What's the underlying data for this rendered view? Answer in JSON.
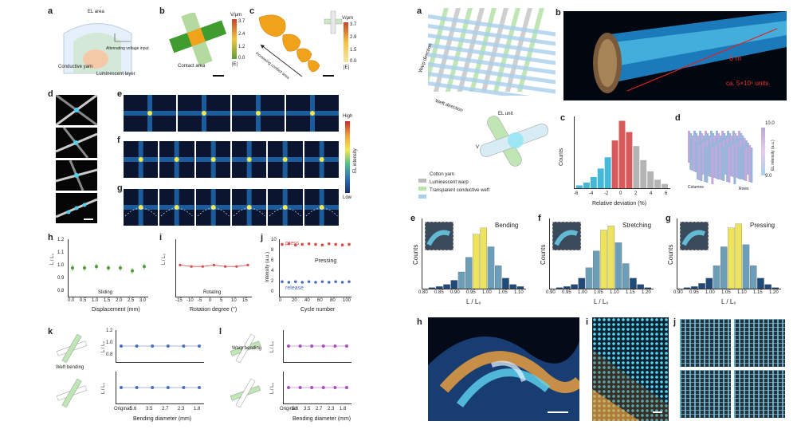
{
  "colors": {
    "accent_yellow": "#f2e64b",
    "accent_blue": "#4a8fc0",
    "accent_cyan": "#39c6e6",
    "accent_red": "#d94b4b",
    "green": "#4e9c3c",
    "orange": "#f0a31a"
  },
  "left": {
    "panel_labels": [
      "a",
      "b",
      "c",
      "d",
      "e",
      "f",
      "g",
      "h",
      "i",
      "j",
      "k",
      "l"
    ],
    "a": {
      "el_area": "EL area",
      "alternating": "Alternating voltage input",
      "conductive": "Conductive yarn",
      "luminescent": "Luminescent layer"
    },
    "b": {
      "contact": "Contact area",
      "cbar_title": "V/μm",
      "cbar_ticks": [
        "3.7",
        "2.4",
        "1.2",
        "0.0"
      ],
      "cbar_label": "|E|"
    },
    "c": {
      "arrow": "Increasing contact area",
      "cbar_title": "V/μm",
      "cbar_ticks": [
        "3.7",
        "2.9",
        "1.5",
        "0.0"
      ],
      "cbar_label": "|E|"
    },
    "legend_el": {
      "high": "High",
      "low": "Low",
      "title": "EL intensity"
    },
    "h": {
      "ylabel": "L / L₀",
      "xlabel": "Displacement (mm)",
      "xticks": [
        "0.0",
        "0.5",
        "1.0",
        "1.5",
        "2.0",
        "2.5",
        "3.0"
      ],
      "yticks": [
        "1.2",
        "1.1",
        "1.0",
        "0.9",
        "0.8"
      ],
      "inset": "Sliding"
    },
    "i": {
      "ylabel": "L / L₀",
      "xlabel": "Rotation degree (°)",
      "xticks": [
        "-15",
        "-10",
        "-5",
        "0",
        "5",
        "10",
        "15"
      ],
      "inset": "Rotating"
    },
    "j": {
      "ylabel": "Intensity (a.u.)",
      "xlabel": "Cycle number",
      "xticks": [
        "0",
        "20",
        "40",
        "60",
        "80",
        "100"
      ],
      "yticks": [
        "10",
        "8",
        "6",
        "4",
        "2",
        "0"
      ],
      "press": "press",
      "release": "release",
      "inset": "Pressing"
    },
    "k": {
      "weft": "Weft bending",
      "ylabel": "L / L₀",
      "xlabel": "Bending diameter (mm)",
      "xticks": [
        "Original",
        "5.6",
        "3.5",
        "2.7",
        "2.3",
        "1.8"
      ],
      "yticks": [
        "1.2",
        "1.0",
        "0.8"
      ]
    },
    "l": {
      "warp": "Warp bending",
      "ylabel": "L / L₀",
      "xlabel": "Bending diameter (mm)",
      "xticks": [
        "Original",
        "5.6",
        "3.5",
        "2.7",
        "2.3",
        "1.8"
      ]
    }
  },
  "right": {
    "a": {
      "warp_dir": "Warp direction",
      "weft_dir": "Weft direction",
      "el_unit": "EL unit",
      "vac": "V",
      "legend": [
        "Cotton yarn",
        "Luminescent warp",
        "Transparent conductive weft"
      ]
    },
    "b": {
      "length": "6 m",
      "units": "ca. 5×10⁵ units"
    },
    "c": {
      "ylabel": "Counts",
      "xlabel": "Relative deviation (%)",
      "xticks": [
        "-6",
        "-4",
        "-2",
        "0",
        "2",
        "4",
        "6"
      ]
    },
    "d": {
      "cbar": "EL intensity (a.u.)",
      "top": "10.0",
      "bottom": "9.0",
      "ax1": "Columns",
      "ax2": "Rows"
    },
    "e": {
      "title": "Bending",
      "ylabel": "Counts",
      "xlabel": "L / L₀",
      "xticks": [
        "0.80",
        "0.85",
        "0.90",
        "0.95",
        "1.00",
        "1.05",
        "1.10"
      ]
    },
    "f": {
      "title": "Stretching",
      "ylabel": "Counts",
      "xlabel": "L / L₀",
      "xticks": [
        "0.90",
        "0.95",
        "1.00",
        "1.05",
        "1.10",
        "1.15",
        "1.20"
      ]
    },
    "g": {
      "title": "Pressing",
      "ylabel": "Counts",
      "xlabel": "L / L₀",
      "xticks": [
        "0.90",
        "0.95",
        "1.00",
        "1.05",
        "1.10",
        "1.15",
        "1.20"
      ]
    },
    "h_label": "h",
    "i_label": "i",
    "j_label": "j"
  },
  "chart_data": [
    {
      "type": "scatter",
      "title": "h",
      "xlabel": "Displacement (mm)",
      "ylabel": "L / L₀",
      "x": [
        0,
        0.5,
        1.0,
        1.5,
        2.0,
        2.5,
        3.0
      ],
      "values": [
        1.0,
        1.0,
        1.01,
        1.0,
        1.0,
        0.98,
        1.01
      ],
      "ylim": [
        0.8,
        1.2
      ]
    },
    {
      "type": "line",
      "title": "i",
      "xlabel": "Rotation degree (°)",
      "ylabel": "L / L₀",
      "x": [
        -15,
        -10,
        -5,
        0,
        5,
        10,
        15
      ],
      "values": [
        1.02,
        1.01,
        1.01,
        1.02,
        1.01,
        1.01,
        1.02
      ]
    },
    {
      "type": "line",
      "title": "j",
      "xlabel": "Cycle number",
      "ylabel": "Intensity (a.u.)",
      "series": [
        {
          "name": "press",
          "values": [
            9.1,
            9.2,
            9.0,
            9.1,
            9.2,
            9.1,
            9.0,
            9.2,
            9.1,
            9.0,
            9.1
          ]
        },
        {
          "name": "release",
          "values": [
            2.6,
            2.5,
            2.6,
            2.5,
            2.6,
            2.5,
            2.6,
            2.5,
            2.6,
            2.5,
            2.6
          ]
        }
      ],
      "x": [
        0,
        10,
        20,
        30,
        40,
        50,
        60,
        70,
        80,
        90,
        100
      ],
      "ylim": [
        0,
        10
      ]
    },
    {
      "type": "bar",
      "title": "c",
      "xlabel": "Relative deviation (%)",
      "ylabel": "Counts",
      "categories": [
        "-6",
        "-5",
        "-4",
        "-3",
        "-2",
        "-1",
        "0",
        "1",
        "2",
        "3",
        "4",
        "5",
        "6"
      ],
      "values": [
        2,
        4,
        8,
        14,
        22,
        34,
        48,
        40,
        30,
        20,
        12,
        6,
        3
      ]
    },
    {
      "type": "bar",
      "title": "Bending",
      "xlabel": "L / L₀",
      "ylabel": "Counts",
      "values": [
        1,
        2,
        4,
        8,
        16,
        30,
        52,
        58,
        40,
        22,
        10,
        4,
        2
      ]
    },
    {
      "type": "bar",
      "title": "Stretching",
      "xlabel": "L / L₀",
      "ylabel": "Counts",
      "values": [
        1,
        2,
        4,
        10,
        20,
        36,
        56,
        60,
        44,
        24,
        10,
        4,
        1
      ]
    },
    {
      "type": "bar",
      "title": "Pressing",
      "xlabel": "L / L₀",
      "ylabel": "Counts",
      "values": [
        1,
        2,
        5,
        10,
        22,
        40,
        58,
        62,
        42,
        22,
        10,
        4,
        1
      ]
    }
  ]
}
